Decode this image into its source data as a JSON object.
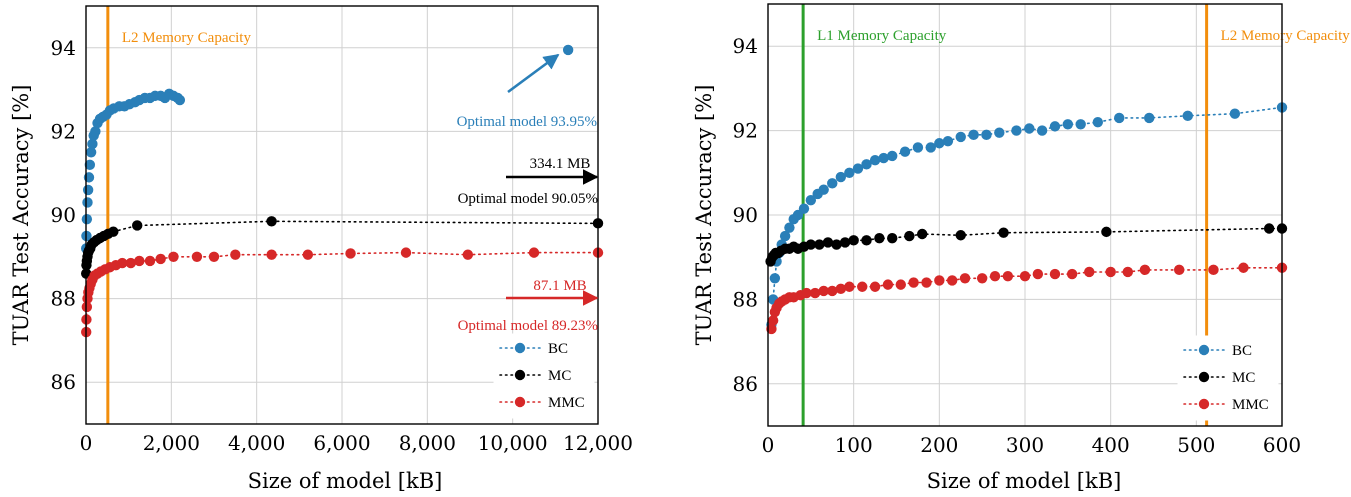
{
  "colors": {
    "BC": "#2a7fb8",
    "MC": "#000000",
    "MMC": "#d62828",
    "L1": "#2ca02c",
    "L2": "#f28e0c"
  },
  "chart_data": [
    {
      "type": "scatter",
      "ylabel": "TUAR Test Accuracy [%]",
      "xlabel": "Size of model [kB]",
      "xlim": [
        0,
        12000
      ],
      "ylim": [
        85,
        95
      ],
      "xticks": [
        0,
        2000,
        4000,
        6000,
        8000,
        10000,
        12000
      ],
      "xtick_labels": [
        "0",
        "2,000",
        "4,000",
        "6,000",
        "8,000",
        "10,000",
        "12,000"
      ],
      "yticks": [
        86,
        88,
        90,
        92,
        94
      ],
      "ytick_labels": [
        "86",
        "88",
        "90",
        "92",
        "94"
      ],
      "grid": true,
      "legend_placement": "bottom-right",
      "vlines": [
        {
          "x": 512,
          "label": "L2 Memory Capacity",
          "color_key": "L2"
        }
      ],
      "annotations": {
        "bc_optimal": {
          "text": "Optimal model 93.95%",
          "point": [
            11300,
            93.95
          ]
        },
        "mc_size": "334.1 MB",
        "mc_optimal": "Optimal model 90.05%",
        "mmc_size": "87.1 MB",
        "mmc_optimal": "Optimal model 89.23%"
      },
      "series": [
        {
          "name": "BC",
          "color_key": "BC",
          "connected": false,
          "points": [
            [
              5,
              89.2
            ],
            [
              10,
              89.5
            ],
            [
              20,
              89.9
            ],
            [
              35,
              90.3
            ],
            [
              50,
              90.6
            ],
            [
              70,
              90.9
            ],
            [
              90,
              91.2
            ],
            [
              120,
              91.5
            ],
            [
              150,
              91.7
            ],
            [
              180,
              91.9
            ],
            [
              220,
              92.0
            ],
            [
              270,
              92.2
            ],
            [
              330,
              92.3
            ],
            [
              400,
              92.35
            ],
            [
              480,
              92.4
            ],
            [
              560,
              92.5
            ],
            [
              650,
              92.55
            ],
            [
              780,
              92.6
            ],
            [
              900,
              92.6
            ],
            [
              1020,
              92.65
            ],
            [
              1150,
              92.7
            ],
            [
              1250,
              92.75
            ],
            [
              1380,
              92.8
            ],
            [
              1500,
              92.8
            ],
            [
              1620,
              92.85
            ],
            [
              1750,
              92.85
            ],
            [
              1850,
              92.8
            ],
            [
              1950,
              92.9
            ],
            [
              2050,
              92.85
            ],
            [
              2150,
              92.8
            ],
            [
              2200,
              92.75
            ],
            [
              11300,
              93.95
            ]
          ]
        },
        {
          "name": "MC",
          "color_key": "MC",
          "connected": true,
          "points": [
            [
              5,
              88.6
            ],
            [
              10,
              88.8
            ],
            [
              20,
              88.9
            ],
            [
              35,
              89.0
            ],
            [
              50,
              89.1
            ],
            [
              70,
              89.15
            ],
            [
              100,
              89.2
            ],
            [
              140,
              89.3
            ],
            [
              190,
              89.35
            ],
            [
              250,
              89.4
            ],
            [
              330,
              89.45
            ],
            [
              420,
              89.5
            ],
            [
              520,
              89.55
            ],
            [
              640,
              89.6
            ],
            [
              1200,
              89.75
            ],
            [
              4350,
              89.85
            ],
            [
              12000,
              89.8
            ]
          ]
        },
        {
          "name": "MMC",
          "color_key": "MMC",
          "connected": true,
          "points": [
            [
              5,
              87.2
            ],
            [
              10,
              87.5
            ],
            [
              20,
              87.8
            ],
            [
              35,
              88.0
            ],
            [
              55,
              88.15
            ],
            [
              80,
              88.25
            ],
            [
              110,
              88.35
            ],
            [
              150,
              88.45
            ],
            [
              200,
              88.55
            ],
            [
              270,
              88.6
            ],
            [
              350,
              88.65
            ],
            [
              450,
              88.7
            ],
            [
              560,
              88.75
            ],
            [
              700,
              88.8
            ],
            [
              850,
              88.85
            ],
            [
              1050,
              88.85
            ],
            [
              1250,
              88.9
            ],
            [
              1500,
              88.9
            ],
            [
              1750,
              88.95
            ],
            [
              2050,
              89.0
            ],
            [
              2600,
              89.0
            ],
            [
              3000,
              89.0
            ],
            [
              3500,
              89.05
            ],
            [
              4350,
              89.05
            ],
            [
              5200,
              89.05
            ],
            [
              6200,
              89.08
            ],
            [
              7500,
              89.1
            ],
            [
              8950,
              89.05
            ],
            [
              10500,
              89.1
            ],
            [
              12000,
              89.1
            ]
          ]
        }
      ]
    },
    {
      "type": "scatter",
      "ylabel": "TUAR Test Accuracy [%]",
      "xlabel": "Size of model [kB]",
      "xlim": [
        0,
        600
      ],
      "ylim": [
        85,
        95
      ],
      "xticks": [
        0,
        100,
        200,
        300,
        400,
        500,
        600
      ],
      "xtick_labels": [
        "0",
        "100",
        "200",
        "300",
        "400",
        "500",
        "600"
      ],
      "yticks": [
        86,
        88,
        90,
        92,
        94
      ],
      "ytick_labels": [
        "86",
        "88",
        "90",
        "92",
        "94"
      ],
      "grid": true,
      "legend_placement": "bottom-right",
      "vlines": [
        {
          "x": 41,
          "label": "L1 Memory Capacity",
          "color_key": "L1"
        },
        {
          "x": 512,
          "label": "L2 Memory Capacity",
          "color_key": "L2"
        }
      ],
      "series": [
        {
          "name": "BC",
          "color_key": "BC",
          "connected": true,
          "points": [
            [
              4,
              87.4
            ],
            [
              6,
              88.0
            ],
            [
              8,
              88.5
            ],
            [
              10,
              88.9
            ],
            [
              13,
              89.1
            ],
            [
              16,
              89.3
            ],
            [
              20,
              89.5
            ],
            [
              25,
              89.7
            ],
            [
              30,
              89.9
            ],
            [
              35,
              90.0
            ],
            [
              42,
              90.15
            ],
            [
              50,
              90.35
            ],
            [
              58,
              90.5
            ],
            [
              65,
              90.6
            ],
            [
              75,
              90.75
            ],
            [
              85,
              90.9
            ],
            [
              95,
              91.0
            ],
            [
              105,
              91.1
            ],
            [
              115,
              91.2
            ],
            [
              125,
              91.3
            ],
            [
              135,
              91.35
            ],
            [
              145,
              91.4
            ],
            [
              160,
              91.5
            ],
            [
              175,
              91.6
            ],
            [
              190,
              91.6
            ],
            [
              200,
              91.7
            ],
            [
              210,
              91.75
            ],
            [
              225,
              91.85
            ],
            [
              240,
              91.9
            ],
            [
              255,
              91.9
            ],
            [
              270,
              91.95
            ],
            [
              290,
              92.0
            ],
            [
              305,
              92.05
            ],
            [
              320,
              92.0
            ],
            [
              335,
              92.1
            ],
            [
              350,
              92.15
            ],
            [
              365,
              92.15
            ],
            [
              385,
              92.2
            ],
            [
              410,
              92.3
            ],
            [
              445,
              92.3
            ],
            [
              490,
              92.35
            ],
            [
              545,
              92.4
            ],
            [
              600,
              92.55
            ]
          ]
        },
        {
          "name": "MC",
          "color_key": "MC",
          "connected": true,
          "points": [
            [
              3,
              88.9
            ],
            [
              5,
              89.0
            ],
            [
              7,
              89.05
            ],
            [
              9,
              89.1
            ],
            [
              12,
              89.1
            ],
            [
              15,
              89.15
            ],
            [
              20,
              89.2
            ],
            [
              25,
              89.2
            ],
            [
              30,
              89.25
            ],
            [
              35,
              89.2
            ],
            [
              42,
              89.25
            ],
            [
              50,
              89.3
            ],
            [
              60,
              89.3
            ],
            [
              70,
              89.35
            ],
            [
              80,
              89.3
            ],
            [
              90,
              89.35
            ],
            [
              100,
              89.4
            ],
            [
              115,
              89.4
            ],
            [
              130,
              89.45
            ],
            [
              145,
              89.45
            ],
            [
              165,
              89.5
            ],
            [
              180,
              89.55
            ],
            [
              225,
              89.52
            ],
            [
              275,
              89.58
            ],
            [
              395,
              89.6
            ],
            [
              585,
              89.68
            ],
            [
              600,
              89.68
            ]
          ]
        },
        {
          "name": "MMC",
          "color_key": "MMC",
          "connected": true,
          "points": [
            [
              4,
              87.3
            ],
            [
              6,
              87.5
            ],
            [
              8,
              87.7
            ],
            [
              10,
              87.8
            ],
            [
              13,
              87.9
            ],
            [
              16,
              87.95
            ],
            [
              20,
              88.0
            ],
            [
              25,
              88.05
            ],
            [
              30,
              88.05
            ],
            [
              38,
              88.1
            ],
            [
              45,
              88.15
            ],
            [
              55,
              88.15
            ],
            [
              65,
              88.2
            ],
            [
              75,
              88.2
            ],
            [
              85,
              88.25
            ],
            [
              95,
              88.3
            ],
            [
              110,
              88.3
            ],
            [
              125,
              88.3
            ],
            [
              140,
              88.35
            ],
            [
              155,
              88.35
            ],
            [
              170,
              88.4
            ],
            [
              185,
              88.4
            ],
            [
              200,
              88.45
            ],
            [
              215,
              88.45
            ],
            [
              230,
              88.5
            ],
            [
              250,
              88.5
            ],
            [
              265,
              88.55
            ],
            [
              280,
              88.55
            ],
            [
              300,
              88.55
            ],
            [
              315,
              88.6
            ],
            [
              335,
              88.6
            ],
            [
              355,
              88.6
            ],
            [
              375,
              88.65
            ],
            [
              400,
              88.65
            ],
            [
              420,
              88.65
            ],
            [
              440,
              88.7
            ],
            [
              480,
              88.7
            ],
            [
              520,
              88.7
            ],
            [
              555,
              88.75
            ],
            [
              600,
              88.75
            ]
          ]
        }
      ]
    }
  ]
}
